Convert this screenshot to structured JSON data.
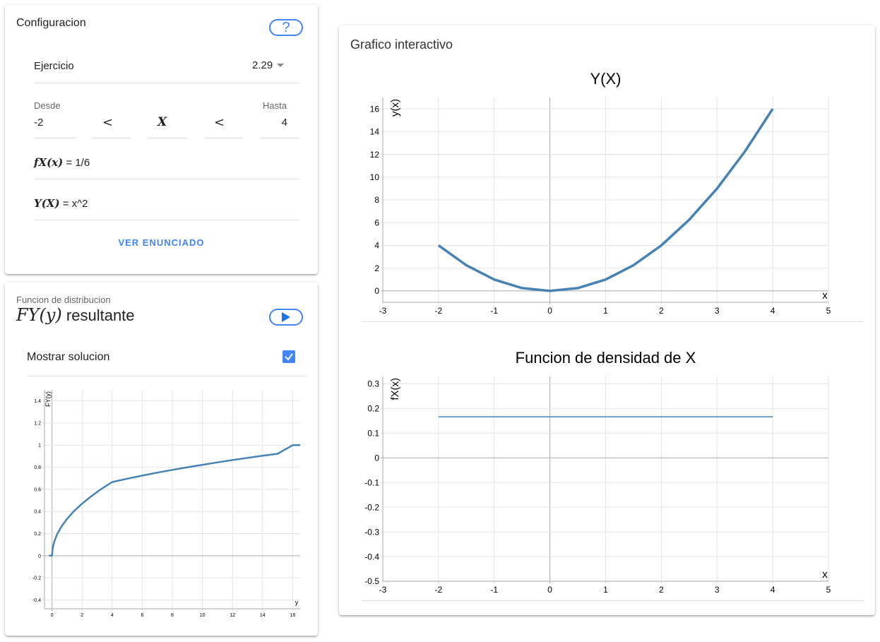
{
  "config": {
    "title": "Configuracion",
    "help_label": "?",
    "exercise_label": "Ejercicio",
    "exercise_value": "2.29",
    "from_label": "Desde",
    "to_label": "Hasta",
    "from_value": "-2",
    "to_value": "4",
    "lt1": "<",
    "var_symbol": "X",
    "lt2": "<",
    "density_math": "fX(x)",
    "density_value": "= 1/6",
    "transform_math": "Y(X)",
    "transform_value": "= x^2",
    "statement_button": "VER ENUNCIADO"
  },
  "distribution": {
    "subtitle": "Funcion de distribucion",
    "title_math": "FY(y)",
    "title_text": "resultante",
    "show_solution_label": "Mostrar solucion",
    "show_solution_checked": true
  },
  "graph_panel": {
    "title": "Grafico interactivo"
  },
  "colors": {
    "accent": "#4285f4",
    "series": "#4682b4"
  },
  "chart_data": [
    {
      "type": "line",
      "title": "Y(X)",
      "xlabel": "x",
      "ylabel": "y(x)",
      "xlim": [
        -3,
        5
      ],
      "ylim": [
        -1,
        17
      ],
      "x_ticks": [
        -3,
        -2,
        -1,
        0,
        1,
        2,
        3,
        4,
        5
      ],
      "y_ticks": [
        0,
        2,
        4,
        6,
        8,
        10,
        12,
        14,
        16
      ],
      "series": [
        {
          "x": [
            -2,
            -1.5,
            -1,
            -0.5,
            0,
            0.5,
            1,
            1.5,
            2,
            2.5,
            3,
            3.5,
            4
          ],
          "y": [
            4,
            2.25,
            1,
            0.25,
            0,
            0.25,
            1,
            2.25,
            4,
            6.25,
            9,
            12.25,
            16
          ]
        }
      ],
      "grid": true
    },
    {
      "type": "line",
      "title": "Funcion de densidad de X",
      "xlabel": "x",
      "ylabel": "fX(x)",
      "xlim": [
        -3,
        5
      ],
      "ylim": [
        -0.5,
        0.33
      ],
      "x_ticks": [
        -3,
        -2,
        -1,
        0,
        1,
        2,
        3,
        4,
        5
      ],
      "y_ticks": [
        -0.5,
        -0.4,
        -0.3,
        -0.2,
        -0.1,
        0,
        0.1,
        0.2,
        0.3
      ],
      "series": [
        {
          "x": [
            -2,
            4
          ],
          "y": [
            0.1667,
            0.1667
          ]
        }
      ],
      "grid": true
    },
    {
      "type": "line",
      "title": "",
      "xlabel": "y",
      "ylabel": "FY(y)",
      "xlim": [
        -0.5,
        16.5
      ],
      "ylim": [
        -0.48,
        1.5
      ],
      "x_ticks": [
        0,
        2,
        4,
        6,
        8,
        10,
        12,
        14,
        16
      ],
      "y_ticks": [
        -0.4,
        -0.2,
        0,
        0.2,
        0.4,
        0.6,
        0.8,
        1,
        1.2,
        1.4
      ],
      "series": [
        {
          "x": [
            -0.2,
            0,
            0.04,
            0.16,
            0.36,
            0.64,
            1,
            1.44,
            1.96,
            2.56,
            3.24,
            4,
            5,
            6,
            7,
            8,
            9,
            10,
            11,
            12,
            13,
            14,
            15,
            16,
            16.5
          ],
          "y": [
            0,
            0,
            0.0667,
            0.1333,
            0.2,
            0.2667,
            0.3333,
            0.4,
            0.4667,
            0.5333,
            0.6,
            0.6667,
            0.6968,
            0.7249,
            0.7514,
            0.7761,
            0.8,
            0.8225,
            0.8441,
            0.8651,
            0.8849,
            0.9039,
            0.9221,
            1,
            1
          ]
        }
      ],
      "grid": true
    }
  ]
}
